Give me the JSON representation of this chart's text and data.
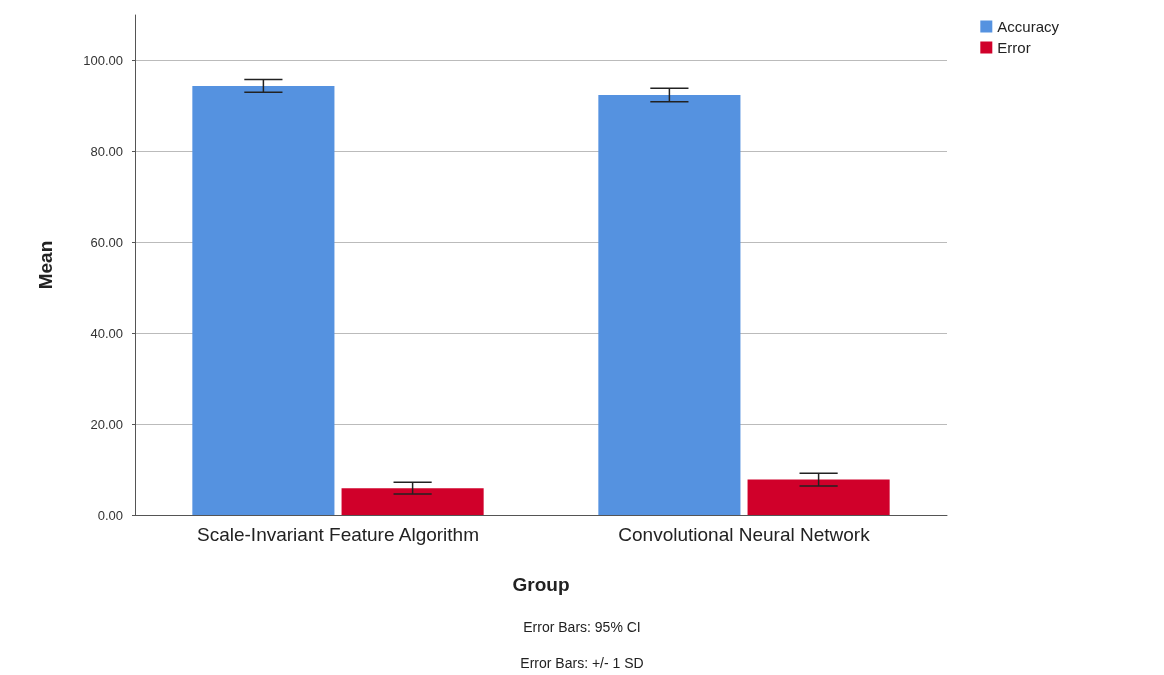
{
  "chart_data": {
    "type": "bar",
    "xlabel": "Group",
    "ylabel": "Mean",
    "categories": [
      "Scale-Invariant Feature Algorithm",
      "Convolutional Neural Network"
    ],
    "series": [
      {
        "name": "Accuracy",
        "color": "#5592e0",
        "values": [
          94.4,
          92.4
        ],
        "errors": [
          1.4,
          1.5
        ]
      },
      {
        "name": "Error",
        "color": "#d0002a",
        "values": [
          5.9,
          7.8
        ],
        "errors": [
          1.3,
          1.4
        ]
      }
    ],
    "ylim": [
      0,
      110
    ],
    "yticks": [
      {
        "value": 0,
        "label": "0.00"
      },
      {
        "value": 20,
        "label": "20.00"
      },
      {
        "value": 40,
        "label": "40.00"
      },
      {
        "value": 60,
        "label": "60.00"
      },
      {
        "value": 80,
        "label": "80.00"
      },
      {
        "value": 100,
        "label": "100.00"
      }
    ],
    "grid": "y",
    "legend": "top right",
    "annotations": [
      "Error Bars: 95% CI",
      "Error Bars: +/- 1 SD"
    ]
  }
}
